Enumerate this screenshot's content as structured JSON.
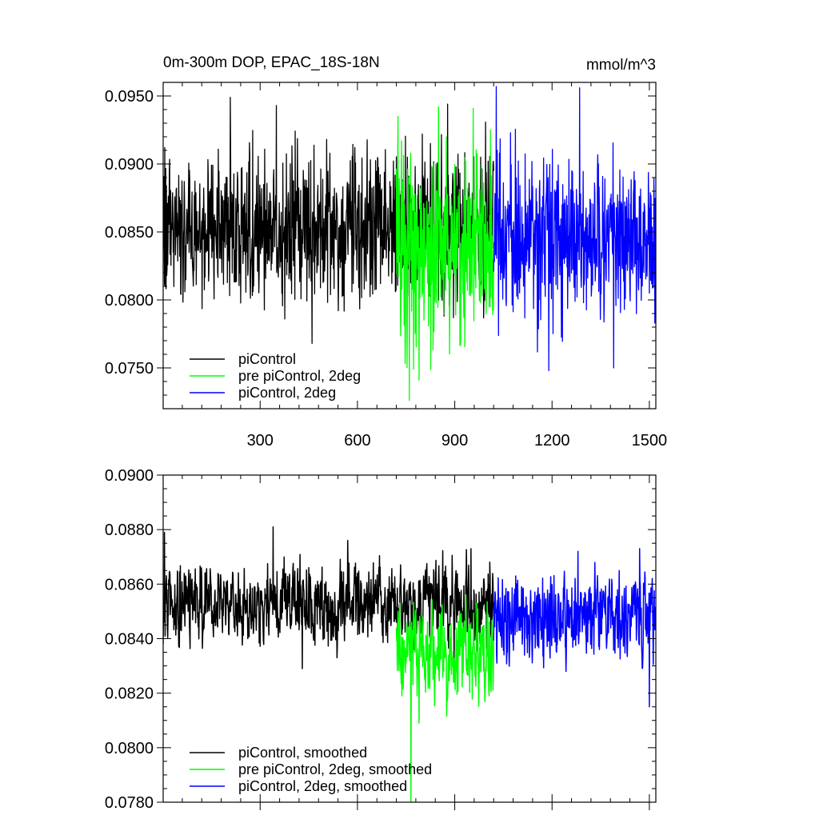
{
  "chart_data": [
    {
      "type": "line",
      "title": "0m-300m DOP, EPAC_18S-18N",
      "units": "mmol/m^3",
      "xlim": [
        1,
        1520
      ],
      "ylim": [
        0.072,
        0.096
      ],
      "x_ticks": [
        300,
        600,
        900,
        1200,
        1500
      ],
      "x_tick_labels": [
        "300",
        "600",
        "900",
        "1200",
        "1500"
      ],
      "y_ticks": [
        0.075,
        0.08,
        0.085,
        0.09,
        0.095
      ],
      "y_tick_labels": [
        "0.0750",
        "0.0800",
        "0.0850",
        "0.0900",
        "0.0950"
      ],
      "legend_position": "bottom-left",
      "series": [
        {
          "name": "piControl",
          "color": "#000000",
          "x_range": [
            1,
            1020
          ],
          "mean": 0.0853,
          "spread": 0.0027,
          "points": [
            [
              208,
              0.0949
            ],
            [
              350,
              0.0943
            ],
            [
              460,
              0.0768
            ],
            [
              730,
              0.088
            ],
            [
              800,
              0.0922
            ],
            [
              878,
              0.0944
            ],
            [
              980,
              0.0905
            ],
            [
              1020,
              0.0895
            ]
          ]
        },
        {
          "name": "pre piControl, 2deg",
          "color": "#00ff00",
          "x_range": [
            720,
            1020
          ],
          "mean": 0.0836,
          "spread": 0.0035,
          "points": [
            [
              725,
              0.0935
            ],
            [
              760,
              0.0726
            ],
            [
              790,
              0.0741
            ],
            [
              850,
              0.0942
            ],
            [
              1010,
              0.0925
            ]
          ]
        },
        {
          "name": "piControl, 2deg",
          "color": "#0000ff",
          "x_range": [
            1020,
            1520
          ],
          "mean": 0.0848,
          "spread": 0.003,
          "points": [
            [
              1028,
              0.0957
            ],
            [
              1190,
              0.0748
            ],
            [
              1285,
              0.0956
            ],
            [
              1390,
              0.075
            ],
            [
              1500,
              0.0805
            ]
          ]
        }
      ]
    },
    {
      "type": "line",
      "xlim": [
        1,
        1520
      ],
      "ylim": [
        0.078,
        0.09
      ],
      "x_ticks": [
        300,
        600,
        900,
        1200,
        1500
      ],
      "y_ticks": [
        0.078,
        0.08,
        0.082,
        0.084,
        0.086,
        0.088,
        0.09
      ],
      "y_tick_labels": [
        "0.0780",
        "0.0800",
        "0.0820",
        "0.0840",
        "0.0860",
        "0.0880",
        "0.0900"
      ],
      "legend_position": "bottom-left",
      "series": [
        {
          "name": "piControl, smoothed",
          "color": "#000000",
          "x_range": [
            1,
            1020
          ],
          "mean": 0.0853,
          "spread": 0.001,
          "points": [
            [
              5,
              0.0879
            ],
            [
              340,
              0.0881
            ],
            [
              430,
              0.0829
            ],
            [
              570,
              0.0876
            ],
            [
              950,
              0.0873
            ],
            [
              1020,
              0.0848
            ]
          ]
        },
        {
          "name": "pre piControl, 2deg, smoothed",
          "color": "#00ff00",
          "x_range": [
            720,
            1020
          ],
          "mean": 0.0835,
          "spread": 0.0012,
          "points": [
            [
              725,
              0.085
            ],
            [
              765,
              0.078
            ],
            [
              790,
              0.0809
            ],
            [
              1010,
              0.0825
            ]
          ]
        },
        {
          "name": "piControl, 2deg, smoothed",
          "color": "#0000ff",
          "x_range": [
            1020,
            1520
          ],
          "mean": 0.0848,
          "spread": 0.0011,
          "points": [
            [
              1030,
              0.0831
            ],
            [
              1280,
              0.0872
            ],
            [
              1470,
              0.0873
            ],
            [
              1500,
              0.0815
            ]
          ]
        }
      ]
    }
  ]
}
